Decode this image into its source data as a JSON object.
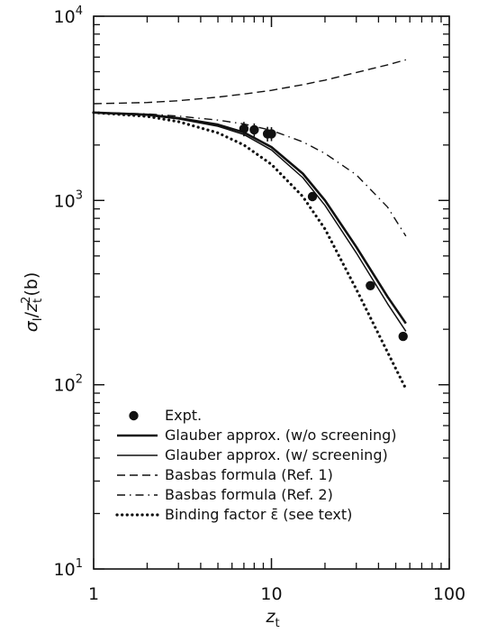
{
  "chart_data": {
    "type": "line",
    "xlabel": "z_t",
    "ylabel": "σ_I / z_t² (b)",
    "xscale": "log",
    "yscale": "log",
    "xlim": [
      1,
      100
    ],
    "ylim": [
      10,
      10000
    ],
    "x_ticks": [
      {
        "value": 1,
        "label": "1"
      },
      {
        "value": 10,
        "label": "10"
      },
      {
        "value": 100,
        "label": "100"
      }
    ],
    "y_ticks": [
      {
        "value": 10,
        "base": "10",
        "exp": "1"
      },
      {
        "value": 100,
        "base": "10",
        "exp": "2"
      },
      {
        "value": 1000,
        "base": "10",
        "exp": "3"
      },
      {
        "value": 10000,
        "base": "10",
        "exp": "4"
      }
    ],
    "legend_position": "bottom-left",
    "series": [
      {
        "name": "Expt.",
        "style": "points",
        "points": [
          [
            7,
            2450
          ],
          [
            8,
            2420
          ],
          [
            9.5,
            2300
          ],
          [
            10,
            2300
          ],
          [
            17,
            1050
          ],
          [
            36,
            345
          ],
          [
            55,
            183
          ]
        ],
        "yerr": [
          220,
          200,
          210,
          200,
          0,
          0,
          0
        ]
      },
      {
        "name": "Glauber approx. (w/o screening)",
        "style": "solid-thick",
        "points": [
          [
            1,
            3000
          ],
          [
            2,
            2920
          ],
          [
            3,
            2800
          ],
          [
            5,
            2580
          ],
          [
            7,
            2340
          ],
          [
            10,
            1950
          ],
          [
            15,
            1400
          ],
          [
            20,
            1000
          ],
          [
            30,
            560
          ],
          [
            45,
            300
          ],
          [
            57,
            215
          ]
        ]
      },
      {
        "name": "Glauber approx. (w/ screening)",
        "style": "solid",
        "points": [
          [
            1,
            3000
          ],
          [
            2,
            2900
          ],
          [
            3,
            2770
          ],
          [
            5,
            2530
          ],
          [
            7,
            2280
          ],
          [
            10,
            1880
          ],
          [
            15,
            1330
          ],
          [
            20,
            940
          ],
          [
            30,
            520
          ],
          [
            45,
            275
          ],
          [
            57,
            195
          ]
        ]
      },
      {
        "name": "Basbas formula (Ref. 1)",
        "style": "dashed",
        "points": [
          [
            1,
            3350
          ],
          [
            2,
            3400
          ],
          [
            3,
            3480
          ],
          [
            5,
            3640
          ],
          [
            7,
            3780
          ],
          [
            10,
            3960
          ],
          [
            15,
            4250
          ],
          [
            20,
            4500
          ],
          [
            30,
            4950
          ],
          [
            45,
            5450
          ],
          [
            57,
            5800
          ]
        ]
      },
      {
        "name": "Basbas formula (Ref. 2)",
        "style": "dashdot",
        "points": [
          [
            1,
            3000
          ],
          [
            2,
            2950
          ],
          [
            3,
            2870
          ],
          [
            5,
            2730
          ],
          [
            7,
            2600
          ],
          [
            10,
            2400
          ],
          [
            15,
            2080
          ],
          [
            20,
            1800
          ],
          [
            30,
            1380
          ],
          [
            45,
            920
          ],
          [
            57,
            640
          ]
        ]
      },
      {
        "name": "Binding factor ε̄ (see text)",
        "style": "dotted",
        "points": [
          [
            1,
            3000
          ],
          [
            2,
            2860
          ],
          [
            3,
            2680
          ],
          [
            5,
            2330
          ],
          [
            7,
            2000
          ],
          [
            10,
            1570
          ],
          [
            15,
            1050
          ],
          [
            20,
            700
          ],
          [
            30,
            330
          ],
          [
            45,
            150
          ],
          [
            57,
            95
          ]
        ]
      }
    ]
  }
}
